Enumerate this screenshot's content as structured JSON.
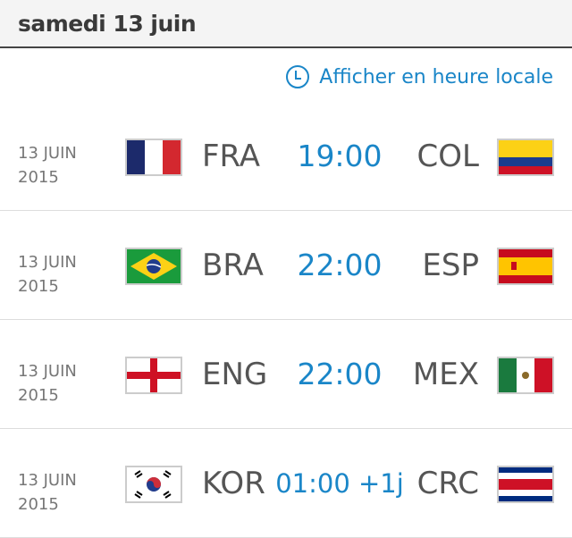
{
  "header": {
    "title": "samedi 13 juin"
  },
  "local_time_link": {
    "label": "Afficher en heure locale",
    "icon": "clock-icon"
  },
  "colors": {
    "accent": "#1a86c8",
    "text": "#555555"
  },
  "matches": [
    {
      "date_line1": "13 JUIN",
      "date_line2": "2015",
      "home": "FRA",
      "home_flag": "france-flag",
      "time": "19:00",
      "away": "COL",
      "away_flag": "colombia-flag"
    },
    {
      "date_line1": "13 JUIN",
      "date_line2": "2015",
      "home": "BRA",
      "home_flag": "brazil-flag",
      "time": "22:00",
      "away": "ESP",
      "away_flag": "spain-flag"
    },
    {
      "date_line1": "13 JUIN",
      "date_line2": "2015",
      "home": "ENG",
      "home_flag": "england-flag",
      "time": "22:00",
      "away": "MEX",
      "away_flag": "mexico-flag"
    },
    {
      "date_line1": "13 JUIN",
      "date_line2": "2015",
      "home": "KOR",
      "home_flag": "korea-flag",
      "time": "01:00 +1j",
      "away": "CRC",
      "away_flag": "costa-rica-flag"
    }
  ]
}
